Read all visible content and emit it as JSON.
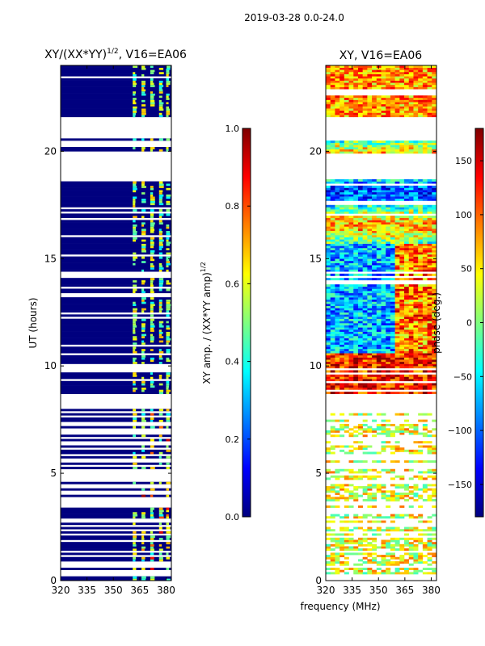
{
  "figure": {
    "suptitle": "2019-03-28 0.0-24.0",
    "shared_xlabel": "frequency (MHz)"
  },
  "chart_data": [
    {
      "type": "heatmap",
      "id": "left",
      "title_main": "XY/(XX*YY)",
      "title_sup": "1/2",
      "title_tail": ", V16=EA06",
      "ylabel": "UT (hours)",
      "xlim": [
        320,
        383
      ],
      "ylim": [
        0,
        24
      ],
      "xticks": [
        320,
        335,
        350,
        365,
        380
      ],
      "yticks": [
        0,
        5,
        10,
        15,
        20
      ],
      "colorbar": {
        "label_main": "XY amp. / (XX*YY amp)",
        "label_sup": "1/2",
        "range": [
          0.0,
          1.0
        ],
        "ticks": [
          "0.0",
          "0.2",
          "0.4",
          "0.6",
          "0.8",
          "1.0"
        ],
        "colormap": "jet"
      }
    },
    {
      "type": "heatmap",
      "id": "right",
      "title": "XY, V16=EA06",
      "xlim": [
        320,
        383
      ],
      "ylim": [
        0,
        24
      ],
      "xticks": [
        320,
        335,
        350,
        365,
        380
      ],
      "yticks": [
        0,
        5,
        10,
        15,
        20
      ],
      "colorbar": {
        "label": "phase (deg.)",
        "range": [
          -180,
          180
        ],
        "ticks": [
          "150",
          "100",
          "50",
          "0",
          "−50",
          "−100",
          "−150"
        ],
        "colormap": "jet"
      }
    }
  ]
}
